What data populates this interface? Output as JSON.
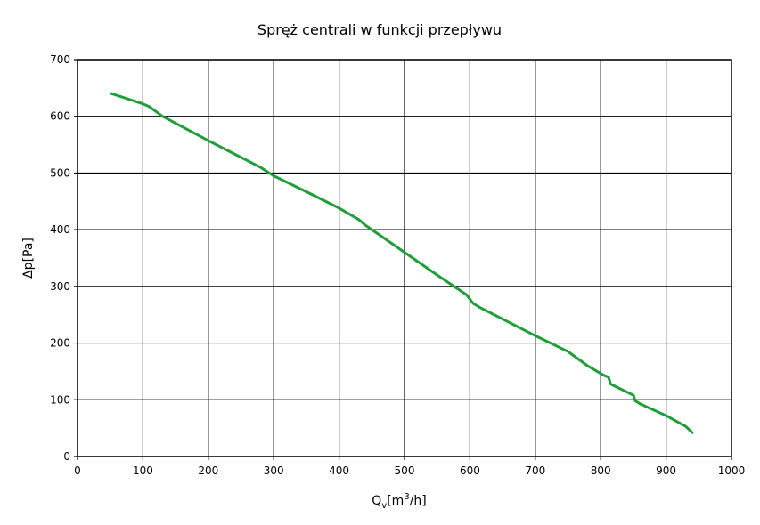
{
  "chart_data": {
    "type": "line",
    "title": "Spręż centrali w funkcji przepływu",
    "xlabel": "Q",
    "xlabel_sub": "v",
    "xlabel_rest_open": "[m",
    "xlabel_sup": "3",
    "xlabel_rest_close": "/h]",
    "ylabel": "Δp[Pa]",
    "xlim": [
      0,
      1000
    ],
    "ylim": [
      0,
      700
    ],
    "x_ticks": [
      0,
      100,
      200,
      300,
      400,
      500,
      600,
      700,
      800,
      900,
      1000
    ],
    "y_ticks": [
      0,
      100,
      200,
      300,
      400,
      500,
      600,
      700
    ],
    "x_tick_labels": [
      "0",
      "100",
      "200",
      "300",
      "400",
      "500",
      "600",
      "700",
      "800",
      "900",
      "1000"
    ],
    "y_tick_labels": [
      "0",
      "100",
      "200",
      "300",
      "400",
      "500",
      "600",
      "700"
    ],
    "grid": true,
    "legend": "none",
    "series": [
      {
        "color": "#1f9e3a",
        "x": [
          52,
          100,
          110,
          130,
          200,
          280,
          300,
          350,
          400,
          430,
          440,
          500,
          550,
          595,
          605,
          615,
          700,
          750,
          780,
          805,
          812,
          815,
          820,
          850,
          853,
          860,
          900,
          930,
          940
        ],
        "y": [
          640,
          622,
          617,
          600,
          557,
          510,
          495,
          467,
          438,
          418,
          408,
          360,
          320,
          285,
          270,
          263,
          213,
          185,
          160,
          143,
          140,
          128,
          125,
          108,
          98,
          93,
          72,
          53,
          42
        ]
      }
    ]
  }
}
